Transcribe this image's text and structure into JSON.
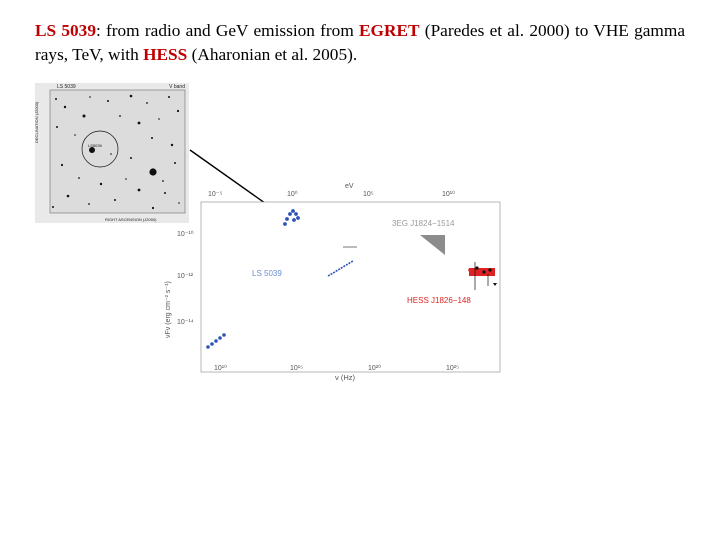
{
  "heading": {
    "part1": "LS 5039",
    "part2": ": from radio and GeV emission from ",
    "part3": "EGRET",
    "part4": " (Paredes et al. 2000) to VHE gamma rays, TeV, with ",
    "part5": "HESS",
    "part6": " (Aharonian et al. 2005)."
  },
  "finder_chart": {
    "title_left": "LS 5039",
    "title_right": "V band",
    "source_label": "LS5039",
    "y_axis_label": "DECLINATION (J2000)",
    "x_axis_label": "RIGHT ASCENSION (J2000)"
  },
  "sed_plot": {
    "top_axis_label": "eV",
    "top_ticks": [
      "10⁻⁵",
      "10⁰",
      "10⁵",
      "10¹⁰"
    ],
    "bottom_ticks": [
      "10¹⁰",
      "10¹⁵",
      "10²⁰",
      "10²⁵"
    ],
    "x_label": "ν (Hz)",
    "y_label": "νFν (erg cm⁻² s⁻¹)",
    "y_ticks": [
      "10⁻¹⁰",
      "10⁻¹²",
      "10⁻¹⁴"
    ],
    "labels": {
      "ls5039": "LS 5039",
      "egret": "3EG J1824−1514",
      "hess": "HESS J1826−148"
    },
    "colors": {
      "data": "#2d55b5",
      "hess": "#dd2222",
      "egret": "#8c8c8c"
    }
  }
}
